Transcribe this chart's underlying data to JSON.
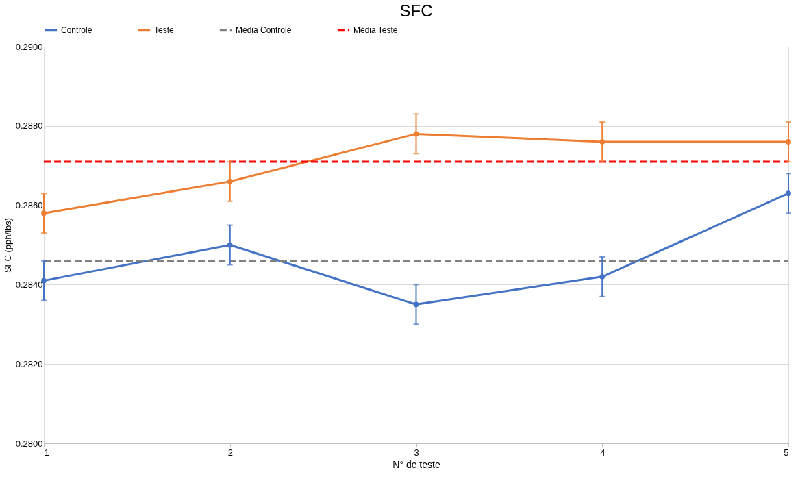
{
  "chart_data": {
    "type": "line",
    "title": "SFC",
    "xlabel": "N° de teste",
    "ylabel": "SFC (pph/lbs)",
    "x": [
      1,
      2,
      3,
      4,
      5
    ],
    "series": [
      {
        "name": "Controle",
        "color": "#4472c4",
        "values": [
          0.2841,
          0.285,
          0.2835,
          0.2842,
          0.2863
        ],
        "errors": [
          0.0005,
          0.0005,
          0.0005,
          0.0005,
          0.0005
        ],
        "marker": "circle"
      },
      {
        "name": "Teste",
        "color": "#ed7d31",
        "values": [
          0.2858,
          0.2866,
          0.2878,
          0.2876,
          0.2876
        ],
        "errors": [
          0.0005,
          0.0005,
          0.0005,
          0.0005,
          0.0005
        ],
        "marker": "circle"
      }
    ],
    "ref_lines": [
      {
        "axis": "y",
        "value": 0.2846,
        "label": "Média Controle",
        "color": "#808080",
        "line_style": "dashed"
      },
      {
        "axis": "y",
        "value": 0.2871,
        "label": "Média Teste",
        "color": "#ff0000",
        "line_style": "dashed"
      }
    ],
    "xlim": [
      1,
      5
    ],
    "xticks": [
      1,
      2,
      3,
      4,
      5
    ],
    "ylim": [
      0.28,
      0.29
    ],
    "yticks": [
      {
        "value": 0.28,
        "label": "0.2800"
      },
      {
        "value": 0.282,
        "label": "0.2820"
      },
      {
        "value": 0.284,
        "label": "0.2840"
      },
      {
        "value": 0.286,
        "label": "0.2860"
      },
      {
        "value": 0.288,
        "label": "0.2880"
      },
      {
        "value": 0.29,
        "label": "0.2900"
      }
    ],
    "grid": "y",
    "legend": "top",
    "line_style": "solid"
  }
}
